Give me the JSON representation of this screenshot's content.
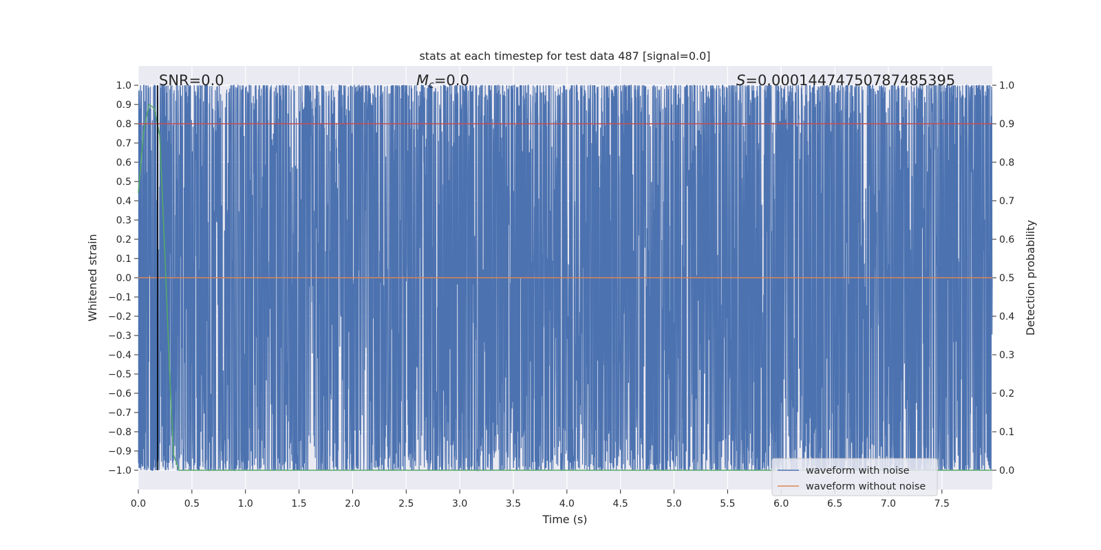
{
  "chart_data": {
    "type": "line",
    "title": "stats at each timestep for test data 487 [signal=0.0]",
    "xlabel": "Time (s)",
    "ylabel_left": "Whitened strain",
    "ylabel_right": "Detection probability",
    "xlim": [
      0.0,
      7.97
    ],
    "ylim_left": [
      -1.1,
      1.1
    ],
    "ylim_right": [
      -0.05,
      1.05
    ],
    "xticks": [
      "0.0",
      "0.5",
      "1.0",
      "1.5",
      "2.0",
      "2.5",
      "3.0",
      "3.5",
      "4.0",
      "4.5",
      "5.0",
      "5.5",
      "6.0",
      "6.5",
      "7.0",
      "7.5"
    ],
    "yticks_left": [
      "1.0",
      "0.9",
      "0.8",
      "0.7",
      "0.6",
      "0.5",
      "0.4",
      "0.3",
      "0.2",
      "0.1",
      "0.0",
      "−0.1",
      "−0.2",
      "−0.3",
      "−0.4",
      "−0.5",
      "−0.6",
      "−0.7",
      "−0.8",
      "−0.9",
      "−1.0"
    ],
    "yticks_right": [
      "1.0",
      "0.9",
      "0.8",
      "0.7",
      "0.6",
      "0.5",
      "0.4",
      "0.3",
      "0.2",
      "0.1",
      "0.0"
    ],
    "grid": true,
    "legend_position": "lower-right",
    "annotations": {
      "snr": "SNR=0.0",
      "mc_symbol": "M",
      "mc_subscript": "c",
      "mc_value": "=0.0",
      "s_symbol": "S",
      "s_value": "=0.00014474750787485395"
    },
    "series": [
      {
        "name": "waveform with noise",
        "color": "#4c72b0",
        "axis": "left",
        "description": "dense whitened noise filling roughly -1.0 to 1.0"
      },
      {
        "name": "waveform without noise",
        "color": "#dd8452",
        "axis": "left",
        "x": [
          0.0,
          7.97
        ],
        "y": [
          0.0,
          0.0
        ]
      },
      {
        "name": "detection probability",
        "color": "#55a868",
        "axis": "right",
        "in_legend": false,
        "x": [
          0.0,
          0.05,
          0.1,
          0.15,
          0.2,
          0.25,
          0.3,
          0.33,
          0.38,
          7.97
        ],
        "y": [
          0.72,
          0.88,
          0.95,
          0.94,
          0.87,
          0.55,
          0.2,
          0.04,
          0.0,
          0.0
        ]
      },
      {
        "name": "threshold",
        "color": "#c44e52",
        "axis": "right",
        "in_legend": false,
        "x": [
          0.0,
          7.97
        ],
        "y": [
          0.9,
          0.9
        ]
      }
    ],
    "vline": {
      "x": 0.18,
      "color": "#000000"
    }
  }
}
